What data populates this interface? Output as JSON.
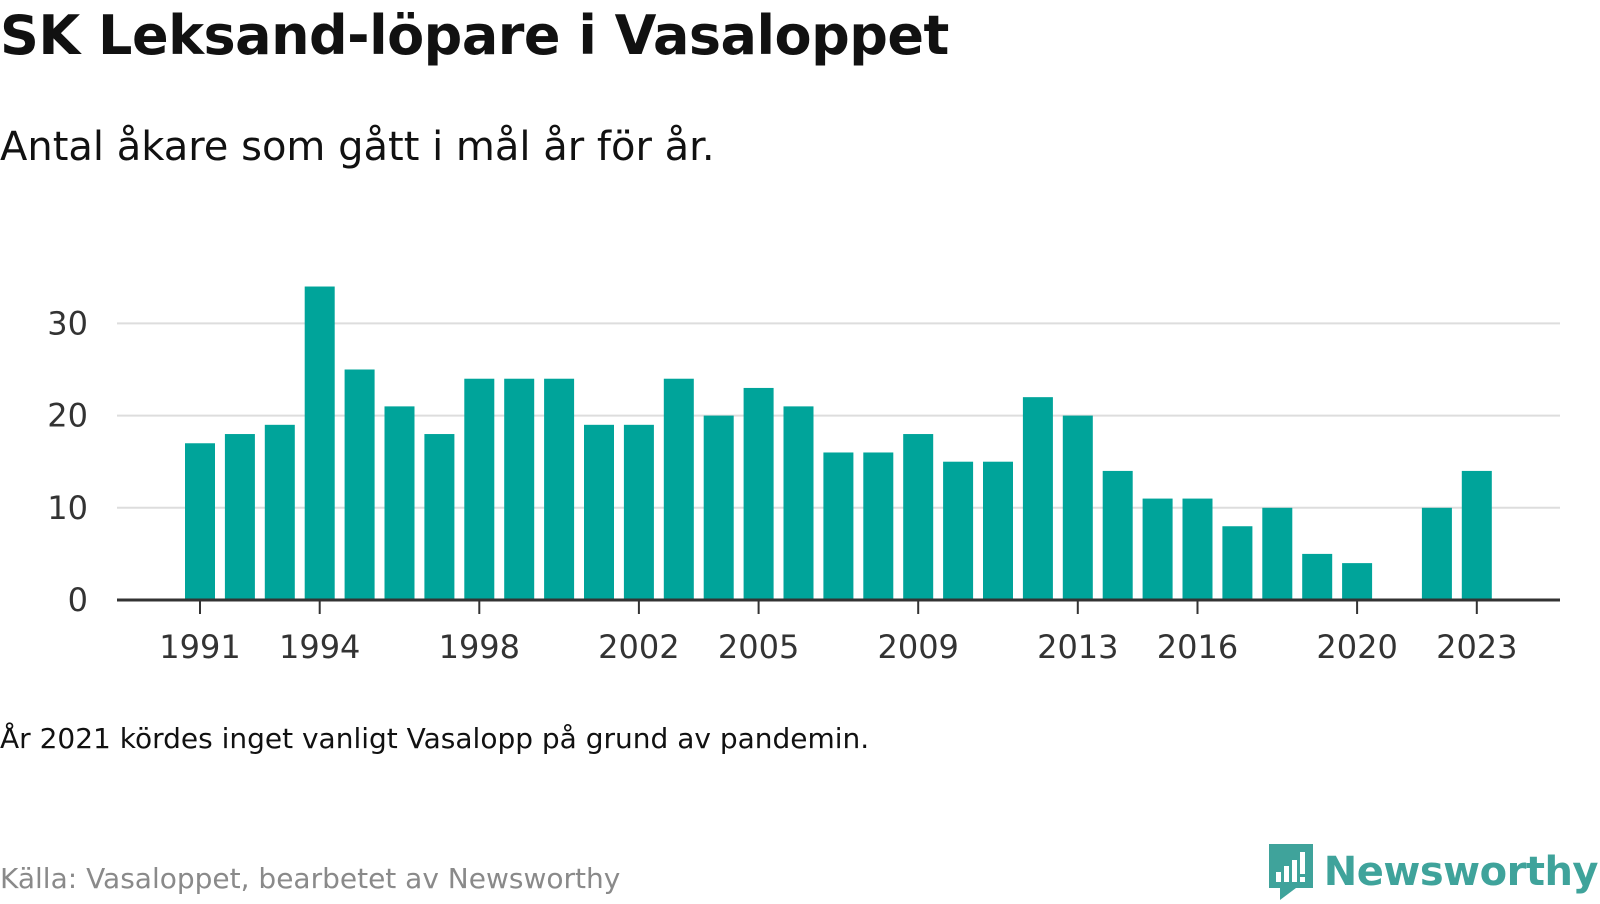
{
  "header": {
    "title": "SK Leksand-löpare i Vasaloppet",
    "subtitle": "Antal åkare som gått i mål år för år."
  },
  "footer": {
    "note": "År 2021 kördes inget vanligt Vasalopp på grund av pandemin.",
    "source": "Källa: Vasaloppet, bearbetet av Newsworthy",
    "logo_text": "Newsworthy"
  },
  "colors": {
    "bar": "#00a49a",
    "grid": "#dddddd",
    "axis": "#333333",
    "logo": "#3fa39b"
  },
  "chart_data": {
    "type": "bar",
    "title": "SK Leksand-löpare i Vasaloppet",
    "subtitle": "Antal åkare som gått i mål år för år.",
    "xlabel": "",
    "ylabel": "",
    "ylim": [
      0,
      36
    ],
    "yticks": [
      0,
      10,
      20,
      30
    ],
    "xticks": [
      "1991",
      "1994",
      "1998",
      "2002",
      "2005",
      "2009",
      "2013",
      "2016",
      "2020",
      "2023"
    ],
    "grid": true,
    "categories": [
      "1991",
      "1992",
      "1993",
      "1994",
      "1995",
      "1996",
      "1997",
      "1998",
      "1999",
      "2000",
      "2001",
      "2002",
      "2003",
      "2004",
      "2005",
      "2006",
      "2007",
      "2008",
      "2009",
      "2010",
      "2011",
      "2012",
      "2013",
      "2014",
      "2015",
      "2016",
      "2017",
      "2018",
      "2019",
      "2020",
      "2021",
      "2022",
      "2023"
    ],
    "values": [
      17,
      18,
      19,
      34,
      25,
      21,
      18,
      24,
      24,
      24,
      19,
      19,
      24,
      20,
      23,
      21,
      16,
      16,
      18,
      15,
      15,
      22,
      20,
      14,
      11,
      11,
      8,
      10,
      5,
      4,
      null,
      10,
      14
    ]
  }
}
